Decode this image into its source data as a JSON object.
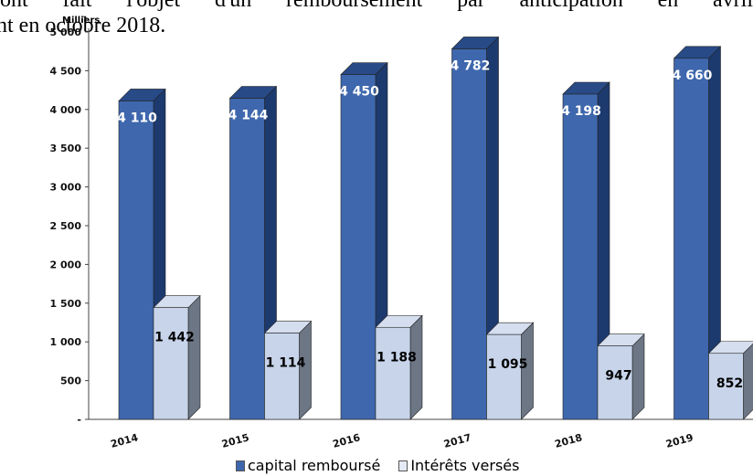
{
  "text": {
    "line1": "ont fait l'objet d'un remboursement par anticipation en avril",
    "line2": "nt en octobre 2018."
  },
  "colors": {
    "capital_front": "#3e67ad",
    "capital_top": "#284a86",
    "capital_side": "#1d3a6e",
    "interets_front": "#c7d4ea",
    "interets_top": "#d5deee",
    "interets_side": "#6c7685"
  },
  "chart_data": {
    "type": "bar",
    "unit": "Milliers",
    "categories": [
      "2014",
      "2015",
      "2016",
      "2017",
      "2018",
      "2019"
    ],
    "series": [
      {
        "name": "capital remboursé",
        "values": [
          4110,
          4144,
          4450,
          4782,
          4198,
          4660
        ],
        "labels": [
          "4 110",
          "4 144",
          "4 450",
          "4 782",
          "4 198",
          "4 660"
        ]
      },
      {
        "name": "Intérêts versés",
        "values": [
          1442,
          1114,
          1188,
          1095,
          947,
          852
        ],
        "labels": [
          "1 442",
          "1 114",
          "1 188",
          "1 095",
          "947",
          "852"
        ]
      }
    ],
    "ylim": [
      0,
      5000
    ],
    "yticks": [
      {
        "value": 0,
        "label": "-"
      },
      {
        "value": 500,
        "label": "500"
      },
      {
        "value": 1000,
        "label": "1 000"
      },
      {
        "value": 1500,
        "label": "1 500"
      },
      {
        "value": 2000,
        "label": "2 000"
      },
      {
        "value": 2500,
        "label": "2 500"
      },
      {
        "value": 3000,
        "label": "3 000"
      },
      {
        "value": 3500,
        "label": "3 500"
      },
      {
        "value": 4000,
        "label": "4 000"
      },
      {
        "value": 4500,
        "label": "4 500"
      },
      {
        "value": 5000,
        "label": "5 000"
      }
    ],
    "grid": false,
    "legend_position": "bottom"
  }
}
